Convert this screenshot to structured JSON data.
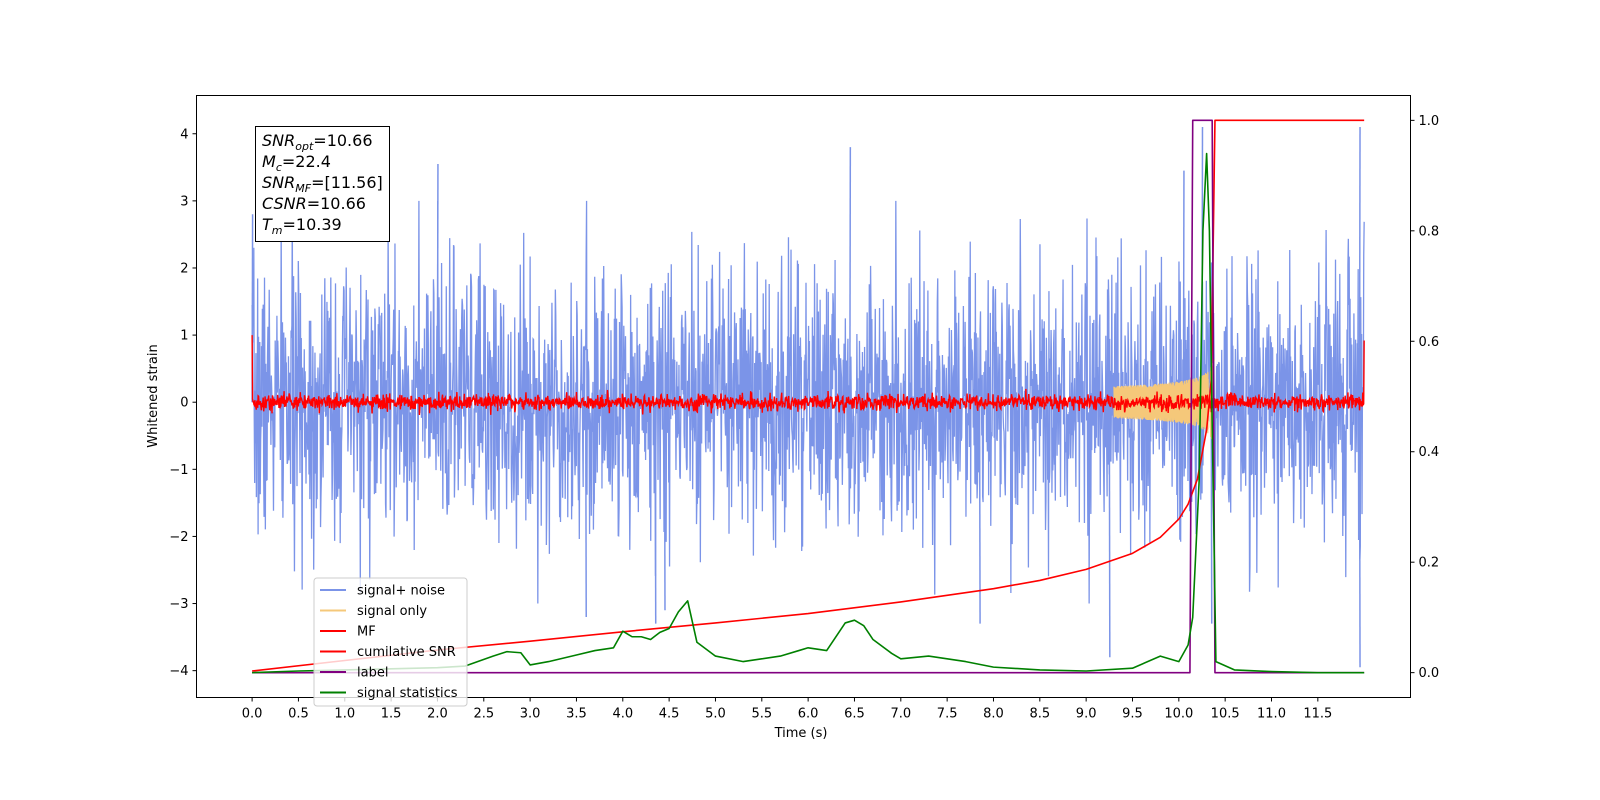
{
  "chart_data": {
    "type": "line",
    "xlabel": "Time (s)",
    "ylabel": "Whitened strain",
    "xlim": [
      -0.6,
      12.5
    ],
    "ylim_left": [
      -4.4,
      4.57
    ],
    "ylim_right": [
      -0.045,
      1.045
    ],
    "x_ticks": [
      "0.0",
      "0.5",
      "1.0",
      "1.5",
      "2.0",
      "2.5",
      "3.0",
      "3.5",
      "4.0",
      "4.5",
      "5.0",
      "5.5",
      "6.0",
      "6.5",
      "7.0",
      "7.5",
      "8.0",
      "8.5",
      "9.0",
      "9.5",
      "10.0",
      "10.5",
      "11.0",
      "11.5"
    ],
    "y_ticks_left": [
      "4",
      "3",
      "2",
      "1",
      "0",
      "−1",
      "−2",
      "−3",
      "−4"
    ],
    "y_ticks_right": [
      "1.0",
      "0.8",
      "0.6",
      "0.4",
      "0.2",
      "0.0"
    ],
    "annotation": [
      {
        "base": "SNR",
        "sub": "opt",
        "value": "=10.66"
      },
      {
        "base": "M",
        "sub": "c",
        "value": "=22.4"
      },
      {
        "base": "SNR",
        "sub": "MF",
        "value": "=[11.56]"
      },
      {
        "base": "CSNR",
        "sub": "",
        "value": "=10.66"
      },
      {
        "base": "T",
        "sub": "m",
        "value": "=10.39"
      }
    ],
    "legend": {
      "position": "lower-left",
      "entries": [
        {
          "label": "signal+ noise",
          "color": "#7b94e8"
        },
        {
          "label": "signal only",
          "color": "#f5c87a"
        },
        {
          "label": "MF",
          "color": "#ff0000"
        },
        {
          "label": "cumilative SNR",
          "color": "#ff0000"
        },
        {
          "label": "label",
          "color": "#800080"
        },
        {
          "label": "signal statistics",
          "color": "#008000"
        }
      ]
    },
    "series": [
      {
        "name": "signal+ noise",
        "axis": "left",
        "color": "#7b94e8",
        "style": "noise",
        "t_range": [
          0.0,
          12.0
        ],
        "typical_peak": 2.4,
        "spike_max": 4.1,
        "spike_min": -4.0,
        "spikes": [
          [
            0.0,
            2.8
          ],
          [
            2.0,
            3.55
          ],
          [
            6.45,
            3.8
          ],
          [
            11.95,
            4.1
          ],
          [
            10.05,
            3.45
          ],
          [
            10.25,
            4.1
          ],
          [
            9.25,
            -3.8
          ],
          [
            11.95,
            -3.95
          ],
          [
            10.35,
            -3.3
          ],
          [
            3.6,
            -3.2
          ],
          [
            4.35,
            -3.3
          ],
          [
            4.45,
            -3.1
          ],
          [
            7.85,
            -3.3
          ]
        ]
      },
      {
        "name": "signal only",
        "axis": "left",
        "color": "#f5c87a",
        "style": "chirp",
        "t_start": 9.3,
        "t_merge": 10.39,
        "peak_amplitude": 0.65
      },
      {
        "name": "MF",
        "axis": "left",
        "color": "#ff0000",
        "style": "noise",
        "t_range": [
          0.0,
          12.0
        ],
        "amplitude": 0.1,
        "spike_max": 0.25,
        "edges": [
          [
            0.0,
            1.0
          ],
          [
            12.0,
            0.92
          ]
        ]
      },
      {
        "name": "cumilative SNR",
        "axis": "right",
        "color": "#ff0000",
        "x": [
          0.0,
          1.0,
          2.0,
          3.0,
          4.0,
          5.0,
          6.0,
          7.0,
          8.0,
          8.5,
          9.0,
          9.5,
          9.8,
          10.0,
          10.1,
          10.2,
          10.3,
          10.35,
          10.39,
          12.0
        ],
        "y": [
          0.003,
          0.022,
          0.041,
          0.057,
          0.074,
          0.09,
          0.107,
          0.128,
          0.152,
          0.167,
          0.187,
          0.216,
          0.245,
          0.278,
          0.305,
          0.35,
          0.44,
          0.53,
          1.0,
          1.0
        ]
      },
      {
        "name": "label",
        "axis": "right",
        "color": "#800080",
        "x": [
          0.0,
          10.12,
          10.15,
          10.36,
          10.39,
          12.0
        ],
        "y": [
          0.0,
          0.0,
          1.0,
          1.0,
          0.0,
          0.0
        ]
      },
      {
        "name": "signal statistics",
        "axis": "right",
        "color": "#008000",
        "x": [
          0.0,
          0.5,
          1.0,
          1.5,
          2.0,
          2.3,
          2.6,
          2.75,
          2.9,
          3.0,
          3.2,
          3.5,
          3.7,
          3.9,
          4.0,
          4.1,
          4.2,
          4.3,
          4.4,
          4.5,
          4.6,
          4.7,
          4.8,
          5.0,
          5.3,
          5.5,
          5.7,
          5.9,
          6.0,
          6.2,
          6.4,
          6.5,
          6.6,
          6.7,
          6.9,
          7.0,
          7.3,
          7.5,
          7.7,
          8.0,
          8.5,
          9.0,
          9.5,
          9.8,
          10.0,
          10.1,
          10.15,
          10.22,
          10.26,
          10.3,
          10.33,
          10.36,
          10.4,
          10.6,
          11.0,
          11.5,
          12.0
        ],
        "y": [
          0.0,
          0.003,
          0.005,
          0.007,
          0.009,
          0.012,
          0.03,
          0.038,
          0.036,
          0.014,
          0.02,
          0.032,
          0.04,
          0.045,
          0.075,
          0.065,
          0.065,
          0.06,
          0.073,
          0.08,
          0.11,
          0.13,
          0.055,
          0.03,
          0.02,
          0.025,
          0.03,
          0.04,
          0.045,
          0.04,
          0.09,
          0.095,
          0.085,
          0.06,
          0.035,
          0.025,
          0.03,
          0.025,
          0.02,
          0.01,
          0.005,
          0.003,
          0.008,
          0.03,
          0.02,
          0.05,
          0.1,
          0.35,
          0.8,
          0.94,
          0.8,
          0.45,
          0.02,
          0.005,
          0.002,
          0.0,
          0.0
        ]
      }
    ]
  }
}
